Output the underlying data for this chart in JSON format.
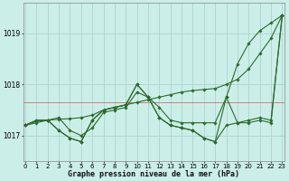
{
  "title": "Graphe pression niveau de la mer (hPa)",
  "bg_color": "#cceee8",
  "grid_color": "#aad4ce",
  "line_color": "#2d6a2d",
  "xmin": 0,
  "xmax": 23,
  "ymin": 1016.5,
  "ymax": 1019.6,
  "yticks": [
    1017,
    1018,
    1019
  ],
  "xticks": [
    0,
    1,
    2,
    3,
    4,
    5,
    6,
    7,
    8,
    9,
    10,
    11,
    12,
    13,
    14,
    15,
    16,
    17,
    18,
    19,
    20,
    21,
    22,
    23
  ],
  "red_line_y": 1017.65,
  "series": [
    [
      1017.2,
      1017.25,
      1017.3,
      1017.35,
      1017.1,
      1017.0,
      1017.15,
      1017.45,
      1017.5,
      1017.55,
      1017.85,
      1017.75,
      1017.55,
      1017.3,
      1017.25,
      1017.25,
      1017.25,
      1017.25,
      1017.75,
      1017.25,
      1017.25,
      1017.3,
      1017.25,
      1019.35
    ],
    [
      1017.2,
      1017.3,
      1017.3,
      1017.1,
      1016.95,
      1016.88,
      1017.3,
      1017.5,
      1017.55,
      1017.6,
      1018.0,
      1017.75,
      1017.35,
      1017.2,
      1017.15,
      1017.1,
      1016.95,
      1016.88,
      1017.75,
      1018.4,
      1018.8,
      1019.05,
      1019.2,
      1019.35
    ],
    [
      1017.2,
      1017.3,
      1017.3,
      1017.1,
      1016.95,
      1016.88,
      1017.3,
      1017.5,
      1017.55,
      1017.6,
      1018.0,
      1017.75,
      1017.35,
      1017.2,
      1017.15,
      1017.1,
      1016.95,
      1016.88,
      1017.2,
      1017.25,
      1017.3,
      1017.35,
      1017.3,
      1019.35
    ],
    [
      1017.2,
      1017.28,
      1017.3,
      1017.32,
      1017.33,
      1017.35,
      1017.4,
      1017.5,
      1017.55,
      1017.6,
      1017.65,
      1017.7,
      1017.75,
      1017.8,
      1017.85,
      1017.88,
      1017.9,
      1017.92,
      1018.0,
      1018.1,
      1018.3,
      1018.6,
      1018.9,
      1019.35
    ]
  ]
}
